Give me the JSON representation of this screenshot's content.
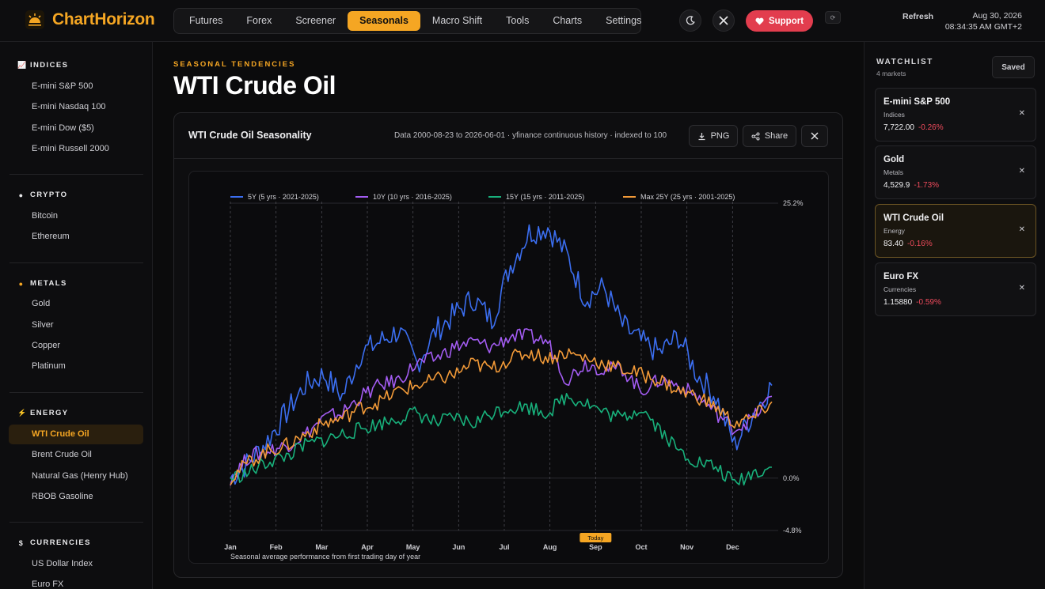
{
  "app": {
    "brand": "ChartHorizon",
    "nav": [
      "Futures",
      "Forex",
      "Screener",
      "Seasonals",
      "Macro Shift",
      "Tools",
      "Charts",
      "Settings"
    ],
    "nav_active": "Seasonals",
    "support_label": "Support",
    "refresh_label": "Refresh",
    "date": "Aug 30, 2026",
    "time": "08:34:35 AM GMT+2",
    "accent_color": "#f5a623"
  },
  "sidebar": {
    "sections": [
      {
        "title": "INDICES",
        "icon": "chart-icon",
        "items": [
          "E-mini S&P 500",
          "E-mini Nasdaq 100",
          "E-mini Dow ($5)",
          "E-mini Russell 2000"
        ]
      },
      {
        "title": "CRYPTO",
        "icon": "coin-icon",
        "items": [
          "Bitcoin",
          "Ethereum"
        ]
      },
      {
        "title": "METALS",
        "icon": "gold-icon",
        "items": [
          "Gold",
          "Silver",
          "Copper",
          "Platinum"
        ]
      },
      {
        "title": "ENERGY",
        "icon": "lightning-icon",
        "items": [
          "WTI Crude Oil",
          "Brent Crude Oil",
          "Natural Gas (Henry Hub)",
          "RBOB Gasoline"
        ]
      },
      {
        "title": "CURRENCIES",
        "icon": "currency-icon",
        "items": [
          "US Dollar Index",
          "Euro FX"
        ]
      }
    ],
    "active_item": "WTI Crude Oil"
  },
  "main": {
    "eyebrow": "SEASONAL TENDENCIES",
    "title": "WTI Crude Oil",
    "card_title": "WTI Crude Oil Seasonality",
    "meta": "Data 2000-08-23 to 2026-06-01 · yfinance continuous history · indexed to 100",
    "png_label": "PNG",
    "share_label": "Share"
  },
  "chart_data": {
    "type": "line",
    "xlabel": "Seasonal average performance from first trading day of year",
    "months": [
      "Jan",
      "Feb",
      "Mar",
      "Apr",
      "May",
      "Jun",
      "Jul",
      "Aug",
      "Sep",
      "Oct",
      "Nov",
      "Dec"
    ],
    "today_label": "Today",
    "today_month_position": 8.0,
    "y_ticks": [
      "25.2%",
      "0.0%",
      "-4.8%"
    ],
    "ylim": [
      -4.8,
      25.2
    ],
    "grid": true,
    "legend_position": "top",
    "series": [
      {
        "name": "5Y (5 yrs · 2021-2025)",
        "color": "#3b6ef0",
        "values": [
          0.0,
          1.5,
          3.5,
          6.0,
          8.5,
          9.5,
          7.5,
          11.5,
          12.5,
          13.5,
          10.5,
          13.5,
          15.0,
          16.5,
          14.5,
          19.5,
          22.5,
          23.0,
          20.5,
          16.5,
          17.5,
          14.0,
          12.5,
          11.5,
          13.0,
          9.5,
          7.5,
          3.0,
          6.0,
          8.5
        ]
      },
      {
        "name": "10Y (10 yrs · 2016-2025)",
        "color": "#a35cf2",
        "values": [
          0.0,
          2.0,
          2.5,
          3.0,
          4.0,
          5.5,
          6.0,
          7.5,
          8.5,
          9.0,
          10.5,
          11.0,
          12.0,
          12.5,
          12.0,
          13.0,
          13.0,
          12.5,
          9.0,
          10.5,
          10.0,
          10.0,
          8.0,
          9.0,
          8.5,
          7.5,
          6.0,
          4.5,
          5.5,
          7.5
        ]
      },
      {
        "name": "15Y (15 yrs · 2011-2025)",
        "color": "#18b07b",
        "values": [
          0.0,
          0.5,
          1.5,
          2.0,
          3.0,
          3.5,
          4.0,
          4.5,
          5.0,
          5.5,
          6.0,
          5.0,
          5.5,
          5.0,
          6.0,
          6.5,
          6.5,
          6.0,
          7.5,
          7.0,
          6.0,
          5.5,
          6.5,
          4.5,
          2.5,
          1.5,
          1.0,
          -0.5,
          0.5,
          1.0
        ]
      },
      {
        "name": "Max 25Y (25 yrs · 2001-2025)",
        "color": "#f29a38",
        "values": [
          0.0,
          1.5,
          2.5,
          3.0,
          4.0,
          5.0,
          5.5,
          6.5,
          7.0,
          8.0,
          8.5,
          9.0,
          9.5,
          10.5,
          10.0,
          11.0,
          11.5,
          11.0,
          11.5,
          11.0,
          10.5,
          10.0,
          9.5,
          9.0,
          8.0,
          7.5,
          6.5,
          5.0,
          5.5,
          7.0
        ]
      }
    ]
  },
  "watchlist": {
    "title": "WATCHLIST",
    "subtitle": "4 markets",
    "saved_label": "Saved",
    "items": [
      {
        "name": "E-mini S&P 500",
        "category": "Indices",
        "price": "7,722.00",
        "change": "-0.26%"
      },
      {
        "name": "Gold",
        "category": "Metals",
        "price": "4,529.9",
        "change": "-1.73%"
      },
      {
        "name": "WTI Crude Oil",
        "category": "Energy",
        "price": "83.40",
        "change": "-0.16%"
      },
      {
        "name": "Euro FX",
        "category": "Currencies",
        "price": "1.15880",
        "change": "-0.59%"
      }
    ],
    "active_item": "WTI Crude Oil",
    "change_color": "#ef4b5c"
  }
}
